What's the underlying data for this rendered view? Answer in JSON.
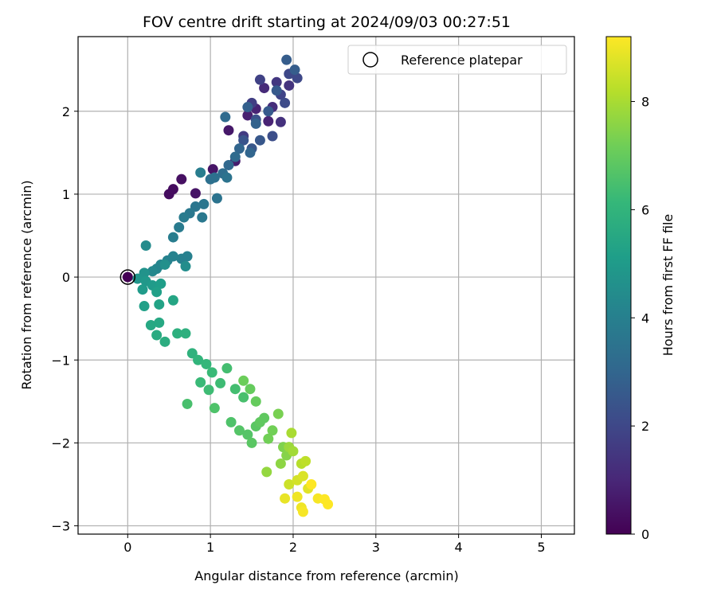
{
  "chart_data": {
    "type": "scatter",
    "title": "FOV centre drift starting at 2024/09/03 00:27:51",
    "xlabel": "Angular distance from reference (arcmin)",
    "ylabel": "Rotation from reference (arcmin)",
    "xlim": [
      -0.6,
      5.4
    ],
    "ylim": [
      -3.1,
      2.9
    ],
    "xticks": [
      0,
      1,
      2,
      3,
      4,
      5
    ],
    "yticks": [
      -3,
      -2,
      -1,
      0,
      1,
      2
    ],
    "grid": true,
    "legend": {
      "placement": "top-right",
      "entries": [
        "Reference platepar"
      ]
    },
    "reference_point": {
      "x": 0,
      "y": 0
    },
    "colorbar": {
      "label": "Hours from first FF file",
      "range": [
        0,
        9.2
      ],
      "ticks": [
        0,
        2,
        4,
        6,
        8
      ],
      "colormap": "viridis"
    },
    "points": [
      {
        "x": 0.0,
        "y": 0.0,
        "c": 0.0
      },
      {
        "x": 0.5,
        "y": 1.0,
        "c": 0.3
      },
      {
        "x": 0.55,
        "y": 1.06,
        "c": 0.3
      },
      {
        "x": 0.65,
        "y": 1.18,
        "c": 0.4
      },
      {
        "x": 0.82,
        "y": 1.01,
        "c": 0.5
      },
      {
        "x": 1.03,
        "y": 1.3,
        "c": 0.5
      },
      {
        "x": 1.22,
        "y": 1.77,
        "c": 0.6
      },
      {
        "x": 1.3,
        "y": 1.4,
        "c": 0.7
      },
      {
        "x": 1.45,
        "y": 1.95,
        "c": 0.8
      },
      {
        "x": 1.55,
        "y": 2.03,
        "c": 0.9
      },
      {
        "x": 1.7,
        "y": 1.88,
        "c": 0.9
      },
      {
        "x": 1.65,
        "y": 2.28,
        "c": 1.1
      },
      {
        "x": 1.75,
        "y": 2.05,
        "c": 1.2
      },
      {
        "x": 1.85,
        "y": 1.87,
        "c": 1.3
      },
      {
        "x": 1.95,
        "y": 2.31,
        "c": 1.4
      },
      {
        "x": 1.8,
        "y": 2.35,
        "c": 1.5
      },
      {
        "x": 1.4,
        "y": 1.7,
        "c": 1.6
      },
      {
        "x": 1.5,
        "y": 2.1,
        "c": 1.7
      },
      {
        "x": 1.6,
        "y": 2.38,
        "c": 1.8
      },
      {
        "x": 1.85,
        "y": 2.2,
        "c": 1.9
      },
      {
        "x": 1.95,
        "y": 2.45,
        "c": 2.0
      },
      {
        "x": 2.05,
        "y": 2.4,
        "c": 2.0
      },
      {
        "x": 1.9,
        "y": 2.1,
        "c": 2.1
      },
      {
        "x": 1.75,
        "y": 1.7,
        "c": 2.2
      },
      {
        "x": 1.55,
        "y": 1.9,
        "c": 2.3
      },
      {
        "x": 1.4,
        "y": 1.65,
        "c": 2.4
      },
      {
        "x": 1.5,
        "y": 1.55,
        "c": 2.5
      },
      {
        "x": 1.6,
        "y": 1.65,
        "c": 2.5
      },
      {
        "x": 1.7,
        "y": 2.0,
        "c": 2.6
      },
      {
        "x": 1.8,
        "y": 2.25,
        "c": 2.6
      },
      {
        "x": 1.92,
        "y": 2.62,
        "c": 2.7
      },
      {
        "x": 2.02,
        "y": 2.5,
        "c": 2.7
      },
      {
        "x": 1.45,
        "y": 2.05,
        "c": 2.8
      },
      {
        "x": 1.55,
        "y": 1.85,
        "c": 2.9
      },
      {
        "x": 1.48,
        "y": 1.5,
        "c": 3.0
      },
      {
        "x": 1.35,
        "y": 1.55,
        "c": 3.0
      },
      {
        "x": 1.22,
        "y": 1.35,
        "c": 3.1
      },
      {
        "x": 1.18,
        "y": 1.93,
        "c": 3.2
      },
      {
        "x": 1.3,
        "y": 1.45,
        "c": 3.2
      },
      {
        "x": 1.15,
        "y": 1.25,
        "c": 3.3
      },
      {
        "x": 1.0,
        "y": 1.18,
        "c": 3.4
      },
      {
        "x": 1.05,
        "y": 1.2,
        "c": 3.4
      },
      {
        "x": 1.2,
        "y": 1.2,
        "c": 3.5
      },
      {
        "x": 1.08,
        "y": 0.95,
        "c": 3.5
      },
      {
        "x": 0.92,
        "y": 0.88,
        "c": 3.6
      },
      {
        "x": 0.82,
        "y": 0.85,
        "c": 3.6
      },
      {
        "x": 0.9,
        "y": 0.72,
        "c": 3.7
      },
      {
        "x": 0.75,
        "y": 0.77,
        "c": 3.7
      },
      {
        "x": 0.68,
        "y": 0.72,
        "c": 3.8
      },
      {
        "x": 0.62,
        "y": 0.6,
        "c": 3.8
      },
      {
        "x": 0.55,
        "y": 0.48,
        "c": 3.9
      },
      {
        "x": 0.88,
        "y": 1.26,
        "c": 3.9
      },
      {
        "x": 0.72,
        "y": 0.25,
        "c": 4.0
      },
      {
        "x": 0.65,
        "y": 0.22,
        "c": 4.0
      },
      {
        "x": 0.55,
        "y": 0.25,
        "c": 4.1
      },
      {
        "x": 0.48,
        "y": 0.2,
        "c": 4.1
      },
      {
        "x": 0.4,
        "y": 0.15,
        "c": 4.2
      },
      {
        "x": 0.35,
        "y": 0.1,
        "c": 4.2
      },
      {
        "x": 0.3,
        "y": 0.07,
        "c": 4.3
      },
      {
        "x": 0.22,
        "y": 0.38,
        "c": 4.4
      },
      {
        "x": 0.7,
        "y": 0.13,
        "c": 4.5
      },
      {
        "x": 0.45,
        "y": 0.15,
        "c": 4.6
      },
      {
        "x": 0.2,
        "y": 0.05,
        "c": 4.7
      },
      {
        "x": 0.12,
        "y": -0.02,
        "c": 4.8
      },
      {
        "x": 0.22,
        "y": -0.05,
        "c": 4.9
      },
      {
        "x": 0.18,
        "y": -0.15,
        "c": 5.0
      },
      {
        "x": 0.3,
        "y": -0.1,
        "c": 5.0
      },
      {
        "x": 0.4,
        "y": -0.08,
        "c": 5.1
      },
      {
        "x": 0.35,
        "y": -0.18,
        "c": 5.2
      },
      {
        "x": 0.2,
        "y": -0.35,
        "c": 5.2
      },
      {
        "x": 0.38,
        "y": -0.33,
        "c": 5.3
      },
      {
        "x": 0.55,
        "y": -0.28,
        "c": 5.4
      },
      {
        "x": 0.28,
        "y": -0.58,
        "c": 5.5
      },
      {
        "x": 0.38,
        "y": -0.55,
        "c": 5.5
      },
      {
        "x": 0.35,
        "y": -0.7,
        "c": 5.6
      },
      {
        "x": 0.45,
        "y": -0.78,
        "c": 5.7
      },
      {
        "x": 0.6,
        "y": -0.68,
        "c": 5.8
      },
      {
        "x": 0.7,
        "y": -0.68,
        "c": 5.8
      },
      {
        "x": 0.78,
        "y": -0.92,
        "c": 5.9
      },
      {
        "x": 0.85,
        "y": -1.0,
        "c": 6.0
      },
      {
        "x": 0.95,
        "y": -1.05,
        "c": 6.1
      },
      {
        "x": 1.02,
        "y": -1.15,
        "c": 6.2
      },
      {
        "x": 0.88,
        "y": -1.27,
        "c": 6.2
      },
      {
        "x": 0.98,
        "y": -1.36,
        "c": 6.3
      },
      {
        "x": 1.12,
        "y": -1.28,
        "c": 6.3
      },
      {
        "x": 1.2,
        "y": -1.1,
        "c": 6.4
      },
      {
        "x": 1.3,
        "y": -1.35,
        "c": 6.4
      },
      {
        "x": 1.4,
        "y": -1.45,
        "c": 6.5
      },
      {
        "x": 0.72,
        "y": -1.53,
        "c": 6.5
      },
      {
        "x": 1.05,
        "y": -1.58,
        "c": 6.6
      },
      {
        "x": 1.25,
        "y": -1.75,
        "c": 6.6
      },
      {
        "x": 1.35,
        "y": -1.85,
        "c": 6.7
      },
      {
        "x": 1.45,
        "y": -1.9,
        "c": 6.7
      },
      {
        "x": 1.5,
        "y": -2.0,
        "c": 6.8
      },
      {
        "x": 1.55,
        "y": -1.8,
        "c": 6.8
      },
      {
        "x": 1.6,
        "y": -1.75,
        "c": 6.9
      },
      {
        "x": 1.65,
        "y": -1.7,
        "c": 6.9
      },
      {
        "x": 1.55,
        "y": -1.5,
        "c": 7.0
      },
      {
        "x": 1.48,
        "y": -1.35,
        "c": 7.0
      },
      {
        "x": 1.4,
        "y": -1.25,
        "c": 7.1
      },
      {
        "x": 1.7,
        "y": -1.95,
        "c": 7.2
      },
      {
        "x": 1.75,
        "y": -1.85,
        "c": 7.2
      },
      {
        "x": 1.82,
        "y": -1.65,
        "c": 7.3
      },
      {
        "x": 1.88,
        "y": -2.05,
        "c": 7.4
      },
      {
        "x": 1.92,
        "y": -2.15,
        "c": 7.5
      },
      {
        "x": 1.85,
        "y": -2.25,
        "c": 7.6
      },
      {
        "x": 1.68,
        "y": -2.35,
        "c": 7.7
      },
      {
        "x": 1.95,
        "y": -2.05,
        "c": 7.8
      },
      {
        "x": 2.0,
        "y": -2.1,
        "c": 7.9
      },
      {
        "x": 1.98,
        "y": -1.88,
        "c": 8.0
      },
      {
        "x": 2.1,
        "y": -2.25,
        "c": 8.2
      },
      {
        "x": 2.15,
        "y": -2.22,
        "c": 8.3
      },
      {
        "x": 1.95,
        "y": -2.5,
        "c": 8.5
      },
      {
        "x": 2.05,
        "y": -2.45,
        "c": 8.6
      },
      {
        "x": 2.12,
        "y": -2.4,
        "c": 8.7
      },
      {
        "x": 2.18,
        "y": -2.55,
        "c": 8.8
      },
      {
        "x": 1.9,
        "y": -2.67,
        "c": 8.9
      },
      {
        "x": 2.05,
        "y": -2.65,
        "c": 9.0
      },
      {
        "x": 2.1,
        "y": -2.78,
        "c": 9.0
      },
      {
        "x": 2.12,
        "y": -2.83,
        "c": 9.1
      },
      {
        "x": 2.3,
        "y": -2.67,
        "c": 9.1
      },
      {
        "x": 2.38,
        "y": -2.68,
        "c": 9.2
      },
      {
        "x": 2.42,
        "y": -2.74,
        "c": 9.2
      },
      {
        "x": 2.22,
        "y": -2.5,
        "c": 9.2
      }
    ]
  }
}
